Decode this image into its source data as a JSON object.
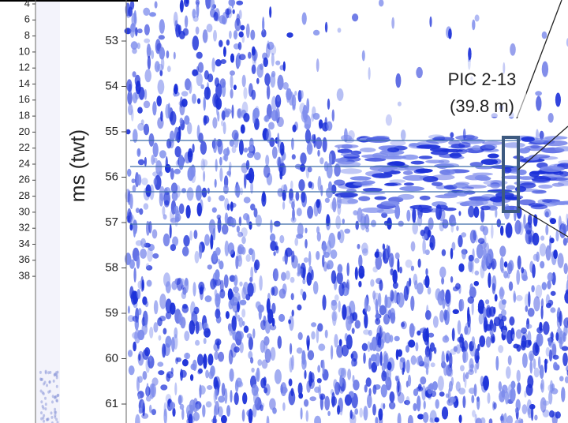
{
  "left_scale": {
    "ticks": [
      4,
      6,
      8,
      10,
      12,
      14,
      16,
      18,
      20,
      22,
      24,
      26,
      28,
      30,
      32,
      34,
      36,
      38
    ]
  },
  "depth_axis": {
    "label": "ms (twt)",
    "ticks": [
      53,
      54,
      55,
      56,
      57,
      58,
      59,
      60,
      61
    ]
  },
  "annotation": {
    "lines": [
      "PIC 2-13",
      "(39.8 m)"
    ]
  }
}
